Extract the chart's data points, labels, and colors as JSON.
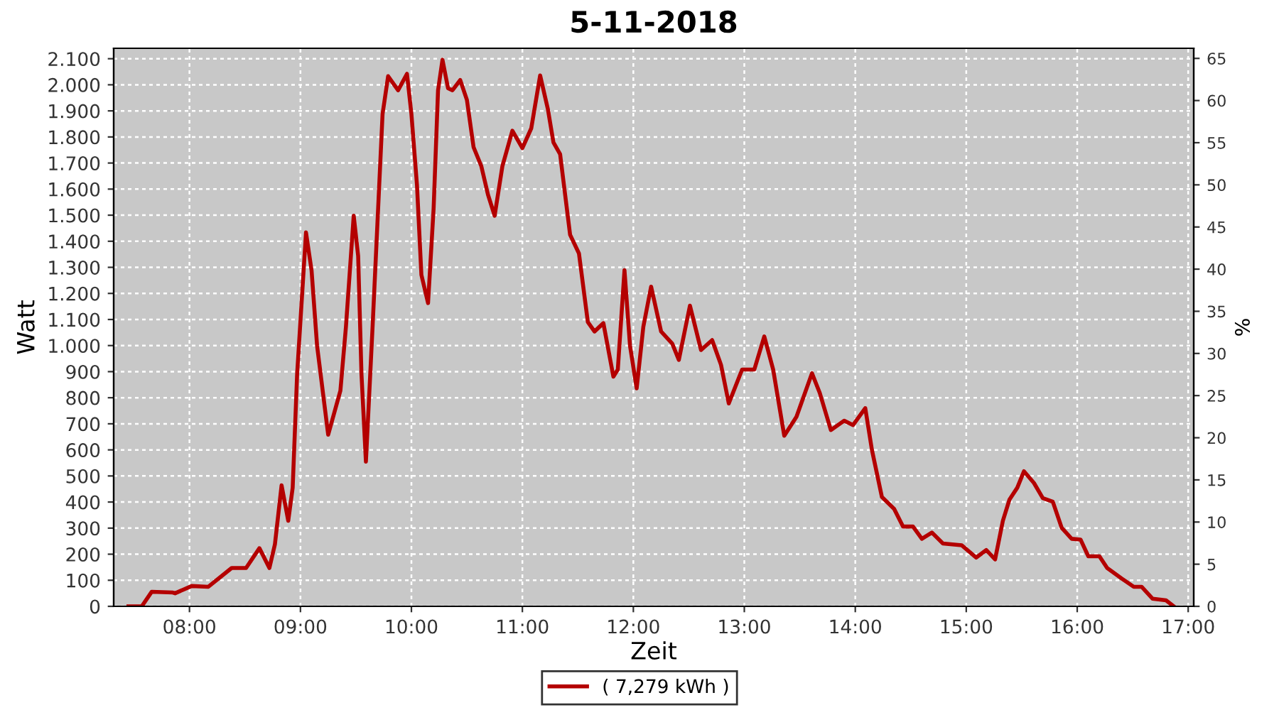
{
  "chart_data": {
    "type": "line",
    "title": "5-11-2018",
    "xlabel": "Zeit",
    "ylabel": "Watt",
    "y2label": "%",
    "xlim": [
      7.317,
      17.05
    ],
    "xticks": [
      {
        "value": 8,
        "label": "08:00"
      },
      {
        "value": 9,
        "label": "09:00"
      },
      {
        "value": 10,
        "label": "10:00"
      },
      {
        "value": 11,
        "label": "11:00"
      },
      {
        "value": 12,
        "label": "12:00"
      },
      {
        "value": 13,
        "label": "13:00"
      },
      {
        "value": 14,
        "label": "14:00"
      },
      {
        "value": 15,
        "label": "15:00"
      },
      {
        "value": 16,
        "label": "16:00"
      },
      {
        "value": 17,
        "label": "17:00"
      }
    ],
    "ylim": [
      0,
      2140
    ],
    "yticks": [
      0,
      100,
      200,
      300,
      400,
      500,
      600,
      700,
      800,
      900,
      {
        "value": 1000,
        "label": "1.000"
      },
      {
        "value": 1100,
        "label": "1.100"
      },
      {
        "value": 1200,
        "label": "1.200"
      },
      {
        "value": 1300,
        "label": "1.300"
      },
      {
        "value": 1400,
        "label": "1.400"
      },
      {
        "value": 1500,
        "label": "1.500"
      },
      {
        "value": 1600,
        "label": "1.600"
      },
      {
        "value": 1700,
        "label": "1.700"
      },
      {
        "value": 1800,
        "label": "1.800"
      },
      {
        "value": 1900,
        "label": "1.900"
      },
      {
        "value": 2000,
        "label": "2.000"
      },
      {
        "value": 2100,
        "label": "2.100"
      }
    ],
    "y2lim": [
      0,
      66.2
    ],
    "y2ticks": [
      0,
      5,
      10,
      15,
      20,
      25,
      30,
      35,
      40,
      45,
      50,
      55,
      60,
      65
    ],
    "grid": true,
    "legend": "bottom",
    "marker": "none",
    "line_style": "solid",
    "series": [
      {
        "name": "( 7,279 kWh )",
        "color": "#b40000",
        "x": [
          7.45,
          7.57,
          7.66,
          7.85,
          7.87,
          8.02,
          8.17,
          8.38,
          8.51,
          8.63,
          8.72,
          8.77,
          8.83,
          8.89,
          8.93,
          8.97,
          9.05,
          9.1,
          9.15,
          9.25,
          9.36,
          9.41,
          9.48,
          9.52,
          9.55,
          9.59,
          9.65,
          9.71,
          9.74,
          9.79,
          9.88,
          9.96,
          10.0,
          10.05,
          10.09,
          10.15,
          10.2,
          10.24,
          10.28,
          10.33,
          10.37,
          10.44,
          10.5,
          10.56,
          10.63,
          10.69,
          10.75,
          10.82,
          10.91,
          11.0,
          11.08,
          11.16,
          11.23,
          11.28,
          11.34,
          11.43,
          11.51,
          11.59,
          11.65,
          11.73,
          11.82,
          11.86,
          11.92,
          11.97,
          12.03,
          12.09,
          12.16,
          12.25,
          12.35,
          12.41,
          12.51,
          12.61,
          12.71,
          12.79,
          12.86,
          12.98,
          13.09,
          13.18,
          13.26,
          13.36,
          13.47,
          13.61,
          13.68,
          13.78,
          13.9,
          13.98,
          14.09,
          14.15,
          14.24,
          14.35,
          14.43,
          14.52,
          14.6,
          14.69,
          14.79,
          14.96,
          15.09,
          15.18,
          15.26,
          15.33,
          15.39,
          15.46,
          15.52,
          15.61,
          15.69,
          15.78,
          15.86,
          15.95,
          16.03,
          16.1,
          16.2,
          16.27,
          16.4,
          16.51,
          16.58,
          16.68,
          16.8,
          16.87
        ],
        "values": [
          0,
          0,
          56,
          53,
          50,
          78,
          75,
          147,
          147,
          223,
          147,
          238,
          464,
          328,
          455,
          890,
          1434,
          1289,
          999,
          658,
          827,
          1072,
          1498,
          1344,
          890,
          555,
          1072,
          1616,
          1888,
          2033,
          1979,
          2042,
          1888,
          1616,
          1271,
          1163,
          1525,
          1979,
          2096,
          1987,
          1979,
          2018,
          1942,
          1761,
          1688,
          1579,
          1498,
          1688,
          1824,
          1757,
          1833,
          2036,
          1906,
          1779,
          1734,
          1425,
          1353,
          1090,
          1054,
          1086,
          881,
          908,
          1289,
          999,
          836,
          1072,
          1226,
          1054,
          1008,
          945,
          1153,
          983,
          1021,
          926,
          778,
          908,
          908,
          1035,
          908,
          654,
          727,
          894,
          818,
          676,
          712,
          695,
          760,
          600,
          419,
          374,
          306,
          306,
          259,
          283,
          241,
          234,
          187,
          216,
          180,
          328,
          410,
          455,
          518,
          473,
          415,
          401,
          301,
          259,
          256,
          192,
          192,
          147,
          107,
          75,
          75,
          29,
          23,
          0
        ]
      }
    ]
  }
}
